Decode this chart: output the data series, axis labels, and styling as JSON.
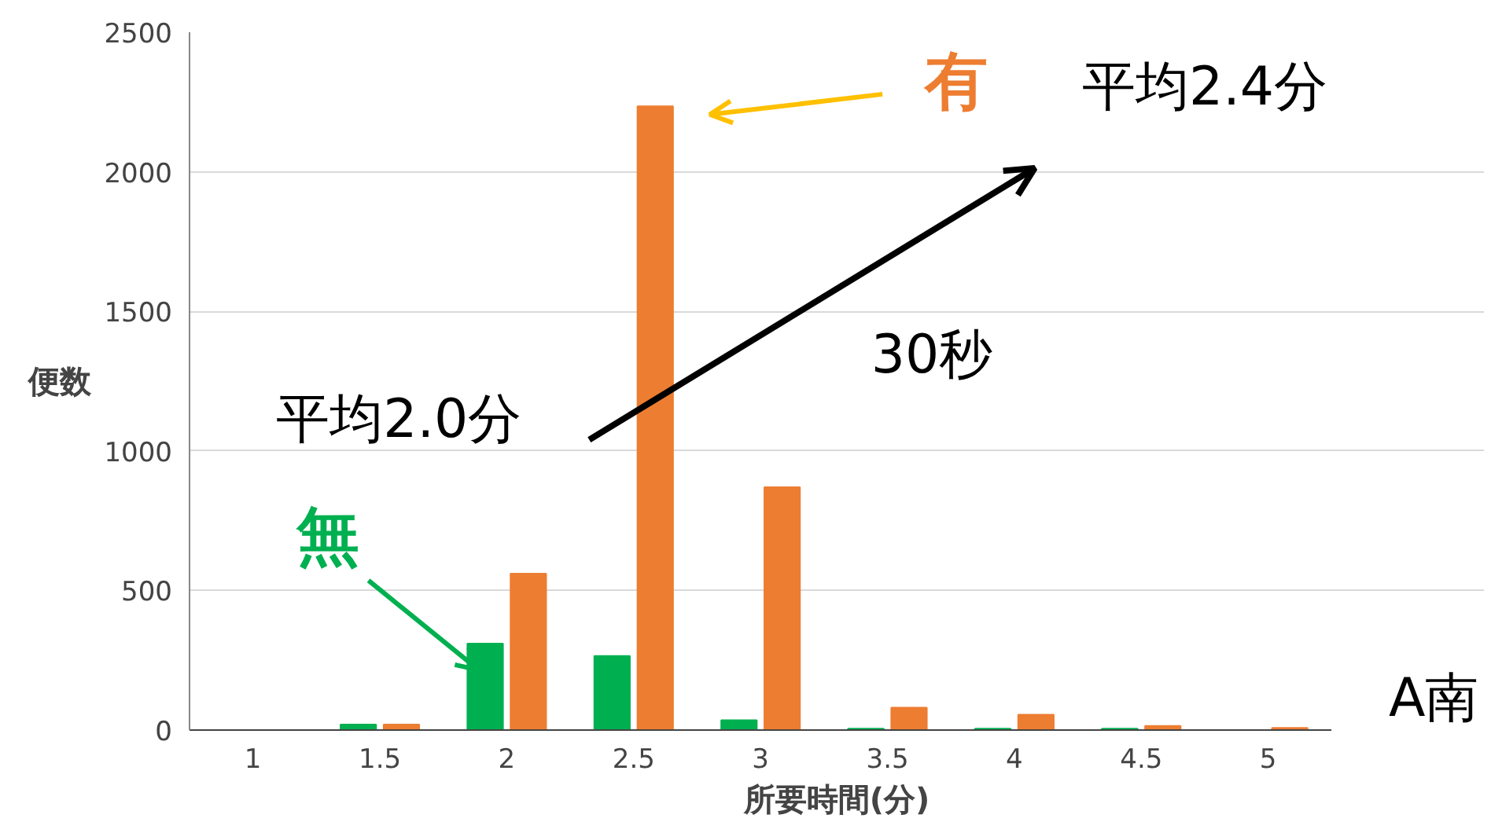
{
  "chart_data": {
    "type": "bar",
    "categories": [
      "1",
      "1.5",
      "2",
      "2.5",
      "3",
      "3.5",
      "4",
      "4.5",
      "5"
    ],
    "series": [
      {
        "name": "無",
        "color": "#00b050",
        "values": [
          0,
          20,
          310,
          265,
          35,
          5,
          5,
          5,
          0
        ]
      },
      {
        "name": "有",
        "color": "#ed7d31",
        "values": [
          0,
          20,
          560,
          2235,
          870,
          80,
          55,
          15,
          8
        ]
      }
    ],
    "xlabel": "所要時間(分)",
    "ylabel": "便数",
    "ylim": [
      0,
      2500
    ],
    "yticks": [
      0,
      500,
      1000,
      1500,
      2000,
      2500
    ],
    "grid": "y",
    "legend": "top left",
    "annotations": [
      "平均2.0分",
      "平均2.4分",
      "30秒",
      "A南"
    ]
  }
}
